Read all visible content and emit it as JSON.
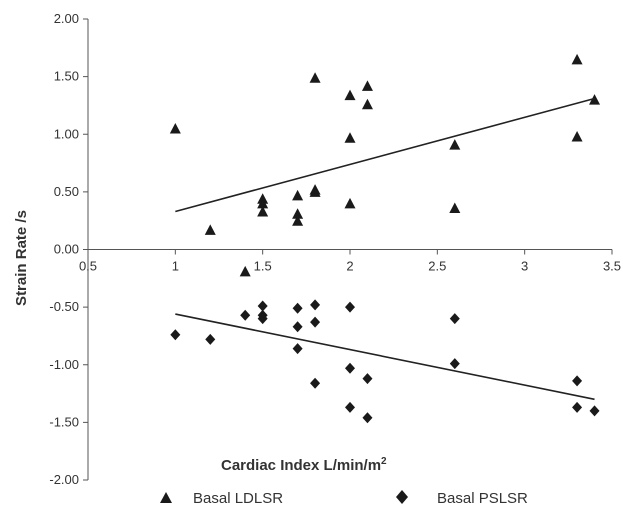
{
  "chart_data": {
    "type": "scatter",
    "title": "",
    "xlabel_main": "Cardiac Index L/min/m",
    "xlabel_sup": "2",
    "ylabel": "Strain Rate  /s",
    "xlim": [
      0.5,
      3.5
    ],
    "ylim": [
      -2.0,
      2.0
    ],
    "x_ticks": [
      "0.5",
      "1",
      "1.5",
      "2",
      "2.5",
      "3",
      "3.5"
    ],
    "y_ticks": [
      "2.00",
      "1.50",
      "1.00",
      "0.50",
      "0.00",
      "-0.50",
      "-1.00",
      "-1.50",
      "-2.00"
    ],
    "grid": false,
    "legend_position": "bottom",
    "series": [
      {
        "name": "Basal LDLSR",
        "marker": "triangle",
        "color": "#1a1a1a",
        "points": [
          [
            1.0,
            1.05
          ],
          [
            1.2,
            0.17
          ],
          [
            1.4,
            -0.19
          ],
          [
            1.5,
            0.44
          ],
          [
            1.5,
            0.4
          ],
          [
            1.5,
            0.33
          ],
          [
            1.7,
            0.47
          ],
          [
            1.7,
            0.31
          ],
          [
            1.7,
            0.25
          ],
          [
            1.8,
            1.49
          ],
          [
            1.8,
            0.52
          ],
          [
            1.8,
            0.5
          ],
          [
            2.0,
            1.34
          ],
          [
            2.0,
            0.97
          ],
          [
            2.0,
            0.4
          ],
          [
            2.1,
            1.42
          ],
          [
            2.1,
            1.26
          ],
          [
            2.6,
            0.91
          ],
          [
            2.6,
            0.36
          ],
          [
            3.3,
            1.65
          ],
          [
            3.3,
            0.98
          ],
          [
            3.4,
            1.3
          ]
        ],
        "trendline": [
          [
            1.0,
            0.33
          ],
          [
            3.4,
            1.31
          ]
        ]
      },
      {
        "name": "Basal PSLSR",
        "marker": "diamond",
        "color": "#1a1a1a",
        "points": [
          [
            1.0,
            -0.74
          ],
          [
            1.2,
            -0.78
          ],
          [
            1.4,
            -0.57
          ],
          [
            1.5,
            -0.49
          ],
          [
            1.5,
            -0.57
          ],
          [
            1.5,
            -0.6
          ],
          [
            1.7,
            -0.51
          ],
          [
            1.7,
            -0.67
          ],
          [
            1.7,
            -0.86
          ],
          [
            1.8,
            -0.48
          ],
          [
            1.8,
            -0.63
          ],
          [
            1.8,
            -1.16
          ],
          [
            2.0,
            -0.5
          ],
          [
            2.0,
            -1.03
          ],
          [
            2.0,
            -1.37
          ],
          [
            2.1,
            -1.12
          ],
          [
            2.1,
            -1.46
          ],
          [
            2.6,
            -0.6
          ],
          [
            2.6,
            -0.99
          ],
          [
            3.3,
            -1.14
          ],
          [
            3.3,
            -1.37
          ],
          [
            3.4,
            -1.4
          ]
        ],
        "trendline": [
          [
            1.0,
            -0.56
          ],
          [
            3.4,
            -1.3
          ]
        ]
      }
    ]
  }
}
